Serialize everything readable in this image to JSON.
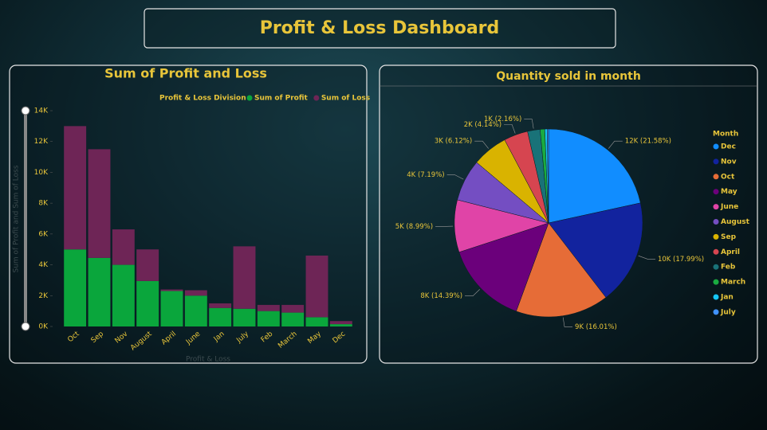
{
  "title": "Profit & Loss Dashboard",
  "chart_data": [
    {
      "type": "bar",
      "stacked": true,
      "title": "Sum of Profit and Loss",
      "legend_title": "Profit & Loss Division",
      "x_label": "Profit & Loss",
      "y_label": "Sum of Profit and Sum of Loss",
      "categories": [
        "Oct",
        "Sep",
        "Nov",
        "August",
        "April",
        "June",
        "Jan",
        "July",
        "Feb",
        "March",
        "May",
        "Dec"
      ],
      "series": [
        {
          "name": "Sum of Profit",
          "color": "#0aa63c",
          "values": [
            5000,
            4450,
            4000,
            2950,
            2300,
            2000,
            1200,
            1150,
            1000,
            900,
            600,
            150
          ]
        },
        {
          "name": "Sum of Loss",
          "color": "#6e2556",
          "values": [
            8000,
            7050,
            2300,
            2050,
            100,
            350,
            300,
            4050,
            400,
            500,
            4000,
            200
          ]
        }
      ],
      "ylim": [
        0,
        14000
      ],
      "yticks": [
        {
          "value": 0,
          "label": "0K"
        },
        {
          "value": 2000,
          "label": "2K"
        },
        {
          "value": 4000,
          "label": "4K"
        },
        {
          "value": 6000,
          "label": "6K"
        },
        {
          "value": 8000,
          "label": "8K"
        },
        {
          "value": 10000,
          "label": "10K"
        },
        {
          "value": 12000,
          "label": "12K"
        },
        {
          "value": 14000,
          "label": "14K"
        }
      ],
      "grid": false
    },
    {
      "type": "pie",
      "title": "Quantity sold in month",
      "legend_title": "Month",
      "categories": [
        "Dec",
        "Nov",
        "Oct",
        "May",
        "June",
        "August",
        "Sep",
        "April",
        "Feb",
        "March",
        "Jan",
        "July"
      ],
      "values": [
        21.58,
        17.99,
        16.01,
        14.39,
        8.99,
        7.19,
        6.12,
        4.14,
        2.16,
        0.8,
        0.4,
        0.23
      ],
      "value_labels": [
        "12K (21.58%)",
        "10K (17.99%)",
        "9K (16.01%)",
        "8K (14.39%)",
        "5K (8.99%)",
        "4K (7.19%)",
        "3K (6.12%)",
        "2K (4.14%)",
        "1K (2.16%)",
        null,
        null,
        null
      ],
      "colors": [
        "#118dff",
        "#12239e",
        "#e66c37",
        "#6b007b",
        "#e044a7",
        "#744ec2",
        "#d9b300",
        "#d64550",
        "#197278",
        "#1aab40",
        "#15c6f4",
        "#4092ff"
      ]
    }
  ]
}
